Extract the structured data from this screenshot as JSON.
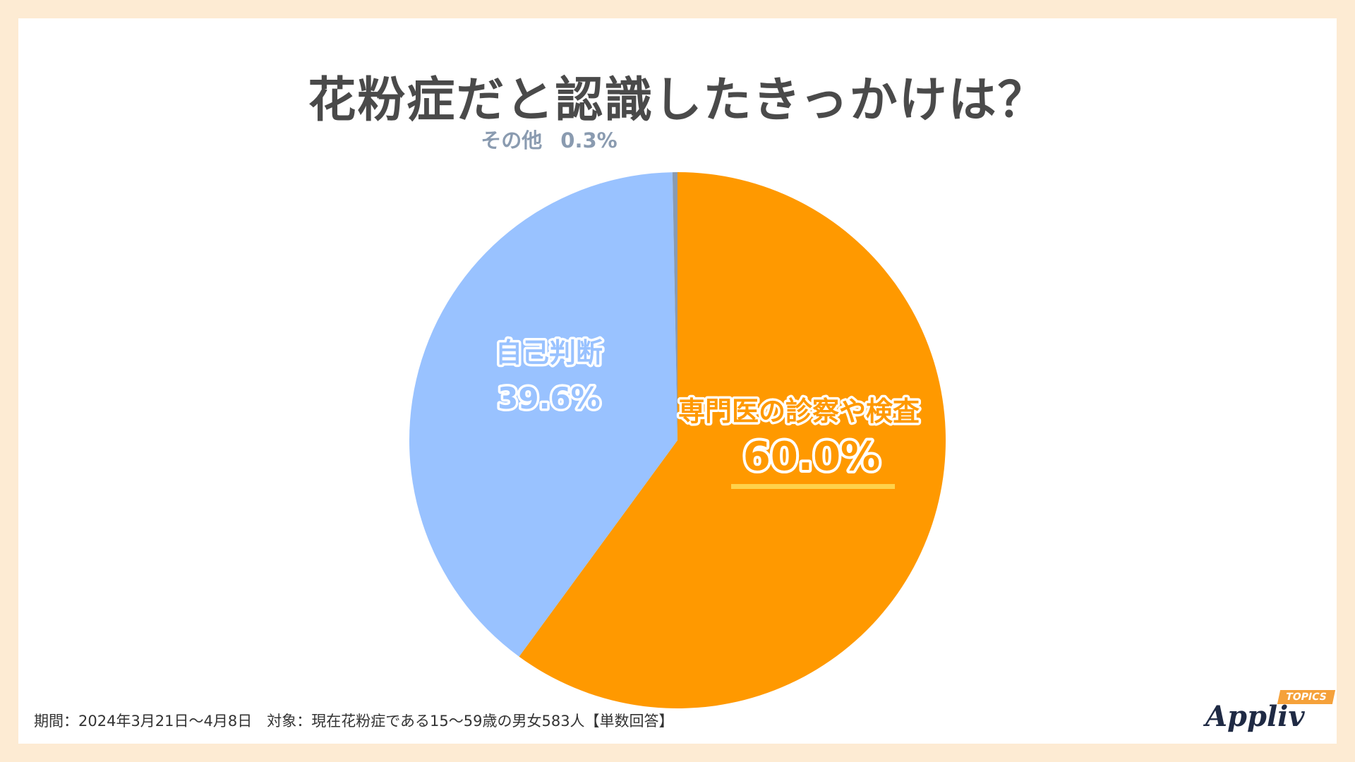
{
  "header": {
    "title": "花粉症だと認識したきっかけは？"
  },
  "chart_data": {
    "type": "pie",
    "slices": [
      {
        "label": "専門医の診察や検査",
        "value": 60.0,
        "display": "60.0%",
        "color": "#ff9900"
      },
      {
        "label": "自己判断",
        "value": 39.6,
        "display": "39.6%",
        "color": "#99c2ff"
      },
      {
        "label": "その他",
        "value": 0.3,
        "display": "0.3%",
        "color": "#8a9bb0"
      }
    ],
    "start": "12 o'clock, clockwise",
    "highlight_color": "#ffd24a"
  },
  "footer": {
    "note": "期間：2024年3月21日〜4月8日　対象：現在花粉症である15〜59歳の男女583人【単数回答】"
  },
  "logo": {
    "text": "Appliv",
    "badge": "TOPICS"
  }
}
